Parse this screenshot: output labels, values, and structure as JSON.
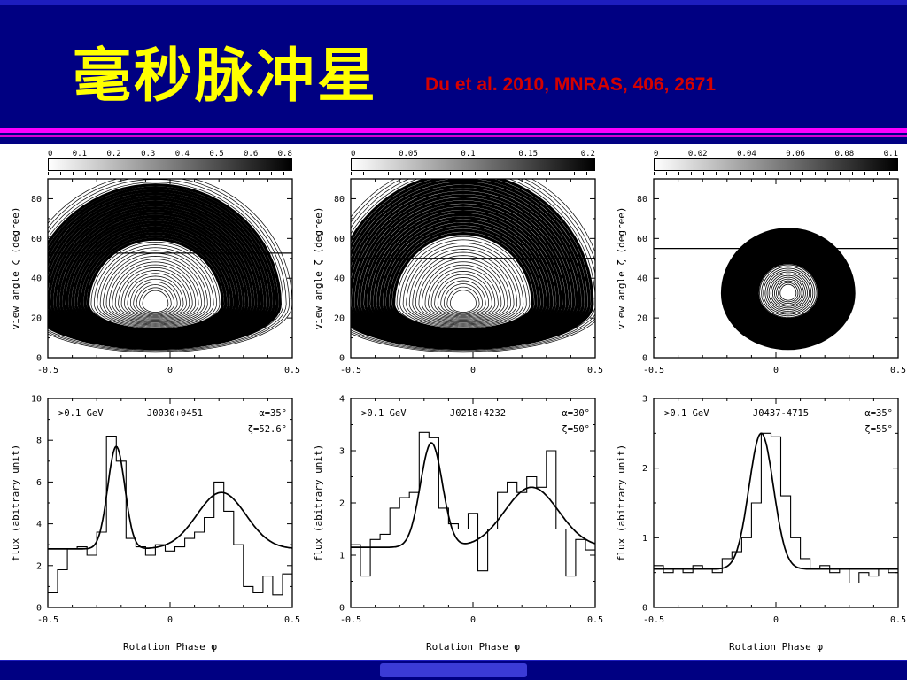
{
  "slide": {
    "title": "毫秒脉冲星",
    "citation": "Du et al. 2010, MNRAS, 406, 2671",
    "colors": {
      "background": "#000082",
      "title": "#FFFF00",
      "citation": "#D40000",
      "divider": "#FF00FF"
    }
  },
  "chart_data": [
    {
      "type": "heatmap",
      "panel": "skymap-J0030+0451",
      "colorbar_ticks": [
        "0",
        "0.1",
        "0.2",
        "0.3",
        "0.4",
        "0.5",
        "0.6",
        "0.8"
      ],
      "xlim": [
        -0.5,
        0.5
      ],
      "ylim": [
        0,
        90
      ],
      "xticks": [
        -0.5,
        0,
        0.5
      ],
      "yticks": [
        0,
        20,
        40,
        60,
        80
      ],
      "ylabel": "view angle ζ (degree)",
      "sightline_zeta": 52.6
    },
    {
      "type": "heatmap",
      "panel": "skymap-J0218+4232",
      "colorbar_ticks": [
        "0",
        "0.05",
        "0.1",
        "0.15",
        "0.2"
      ],
      "xlim": [
        -0.5,
        0.5
      ],
      "ylim": [
        0,
        90
      ],
      "xticks": [
        -0.5,
        0,
        0.5
      ],
      "yticks": [
        0,
        20,
        40,
        60,
        80
      ],
      "ylabel": "view angle ζ (degree)",
      "sightline_zeta": 50
    },
    {
      "type": "heatmap",
      "panel": "skymap-J0437-4715",
      "colorbar_ticks": [
        "0",
        "0.02",
        "0.04",
        "0.06",
        "0.08",
        "0.1"
      ],
      "xlim": [
        -0.5,
        0.5
      ],
      "ylim": [
        0,
        90
      ],
      "xticks": [
        -0.5,
        0,
        0.5
      ],
      "yticks": [
        0,
        20,
        40,
        60,
        80
      ],
      "ylabel": "view angle ζ (degree)",
      "sightline_zeta": 55
    },
    {
      "type": "histogram+line",
      "labels": {
        "energy": ">0.1 GeV",
        "pulsar": "J0030+0451",
        "alpha": "α=35°",
        "zeta": "ζ=52.6°"
      },
      "xlabel": "Rotation Phase φ",
      "ylabel": "flux (abitrary unit)",
      "xlim": [
        -0.5,
        0.5
      ],
      "ylim": [
        0,
        10
      ],
      "xticks": [
        -0.5,
        0,
        0.5
      ],
      "yticks": [
        0,
        2,
        4,
        6,
        8,
        10
      ],
      "histogram": {
        "bin_start": -0.5,
        "bin_width": 0.04,
        "values": [
          0.7,
          1.8,
          2.8,
          2.9,
          2.5,
          3.6,
          8.2,
          7.0,
          3.3,
          2.9,
          2.5,
          3.0,
          2.7,
          2.9,
          3.3,
          3.6,
          4.3,
          6.0,
          4.6,
          3.0,
          1.0,
          0.7,
          1.5,
          0.6,
          1.6
        ]
      },
      "curve": {
        "baseline": 2.8,
        "peaks": [
          {
            "center": -0.22,
            "height": 4.9,
            "sigma": 0.035
          },
          {
            "center": 0.21,
            "height": 2.7,
            "sigma": 0.1
          }
        ]
      }
    },
    {
      "type": "histogram+line",
      "labels": {
        "energy": ">0.1 GeV",
        "pulsar": "J0218+4232",
        "alpha": "α=30°",
        "zeta": "ζ=50°"
      },
      "xlabel": "Rotation Phase φ",
      "ylabel": "flux (abitrary unit)",
      "xlim": [
        -0.5,
        0.5
      ],
      "ylim": [
        0,
        4
      ],
      "xticks": [
        -0.5,
        0,
        0.5
      ],
      "yticks": [
        0,
        1,
        2,
        3,
        4
      ],
      "histogram": {
        "bin_start": -0.5,
        "bin_width": 0.04,
        "values": [
          1.2,
          0.6,
          1.3,
          1.4,
          1.9,
          2.1,
          2.2,
          3.35,
          3.25,
          1.9,
          1.6,
          1.5,
          1.8,
          0.7,
          1.5,
          2.2,
          2.4,
          2.2,
          2.5,
          2.3,
          3.0,
          1.5,
          0.6,
          1.3,
          1.1
        ]
      },
      "curve": {
        "baseline": 1.15,
        "peaks": [
          {
            "center": -0.17,
            "height": 2.0,
            "sigma": 0.045
          },
          {
            "center": 0.24,
            "height": 1.15,
            "sigma": 0.11
          }
        ]
      }
    },
    {
      "type": "histogram+line",
      "labels": {
        "energy": ">0.1 GeV",
        "pulsar": "J0437-4715",
        "alpha": "α=35°",
        "zeta": "ζ=55°"
      },
      "xlabel": "Rotation Phase φ",
      "ylabel": "flux (abitrary unit)",
      "xlim": [
        -0.5,
        0.5
      ],
      "ylim": [
        0,
        3
      ],
      "xticks": [
        -0.5,
        0,
        0.5
      ],
      "yticks": [
        0,
        1,
        2,
        3
      ],
      "histogram": {
        "bin_start": -0.5,
        "bin_width": 0.04,
        "values": [
          0.6,
          0.5,
          0.55,
          0.5,
          0.6,
          0.55,
          0.5,
          0.7,
          0.8,
          1.0,
          1.5,
          2.5,
          2.45,
          1.6,
          1.0,
          0.7,
          0.55,
          0.6,
          0.5,
          0.55,
          0.35,
          0.5,
          0.45,
          0.55,
          0.5
        ]
      },
      "curve": {
        "baseline": 0.55,
        "peaks": [
          {
            "center": -0.06,
            "height": 1.95,
            "sigma": 0.05
          }
        ]
      }
    }
  ]
}
